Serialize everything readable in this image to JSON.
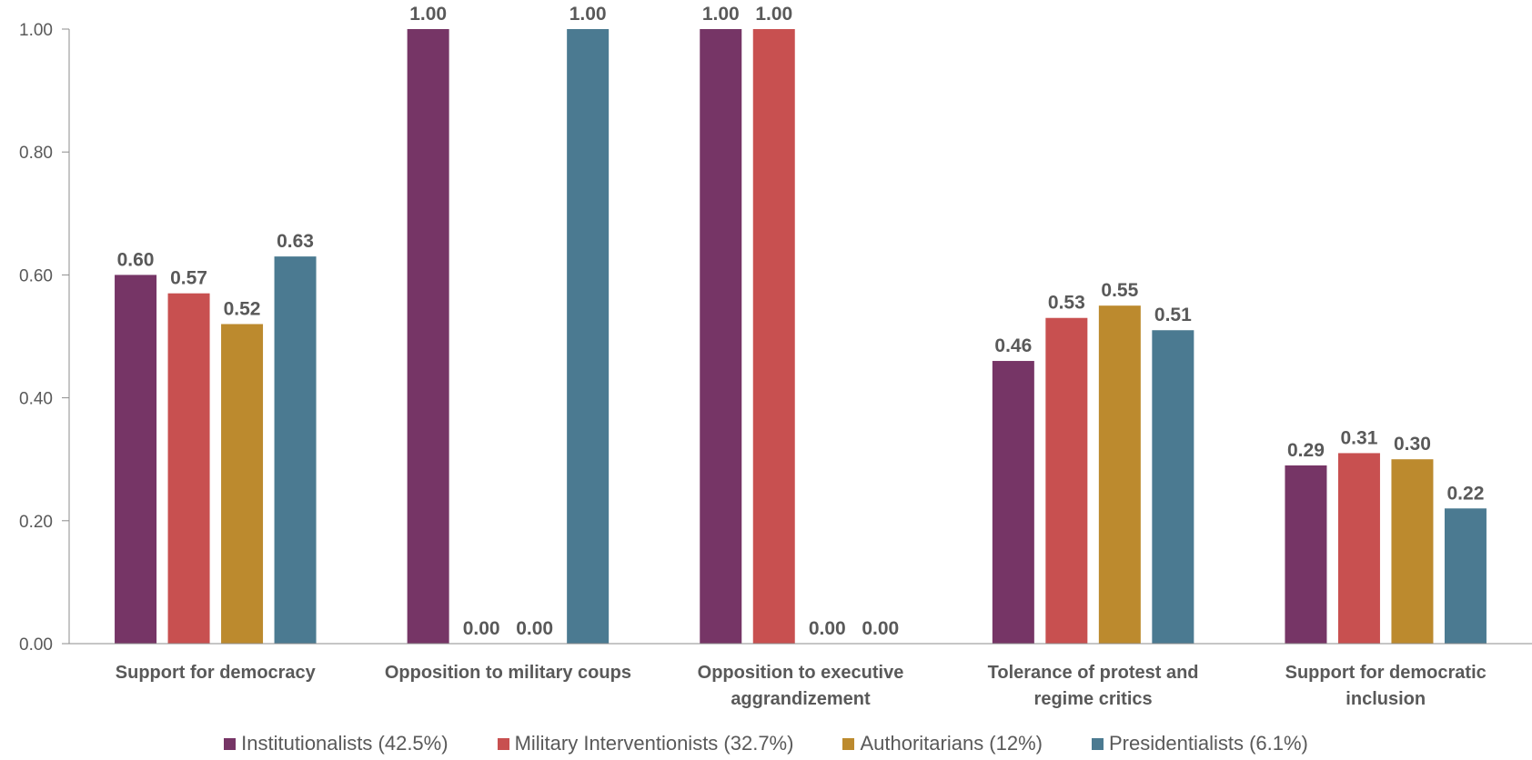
{
  "chart_data": {
    "type": "bar",
    "categories": [
      [
        "Support for democracy"
      ],
      [
        "Opposition to military coups"
      ],
      [
        "Opposition to executive",
        "aggrandizement"
      ],
      [
        "Tolerance of protest and",
        "regime critics"
      ],
      [
        "Support for democratic",
        "inclusion"
      ]
    ],
    "series": [
      {
        "name": "Institutionalists (42.5%)",
        "color": "#763566",
        "values": [
          0.6,
          1.0,
          1.0,
          0.46,
          0.29
        ],
        "labels": [
          "0.60",
          "1.00",
          "1.00",
          "0.46",
          "0.29"
        ]
      },
      {
        "name": "Military Interventionists (32.7%)",
        "color": "#C85050",
        "values": [
          0.57,
          0.0,
          1.0,
          0.53,
          0.31
        ],
        "labels": [
          "0.57",
          "0.00",
          "1.00",
          "0.53",
          "0.31"
        ]
      },
      {
        "name": "Authoritarians (12%)",
        "color": "#BC8A2E",
        "values": [
          0.52,
          0.0,
          0.0,
          0.55,
          0.3
        ],
        "labels": [
          "0.52",
          "0.00",
          "0.00",
          "0.55",
          "0.30"
        ]
      },
      {
        "name": "Presidentialists (6.1%)",
        "color": "#4B7A91",
        "values": [
          0.63,
          1.0,
          0.0,
          0.51,
          0.22
        ],
        "labels": [
          "0.63",
          "1.00",
          "0.00",
          "0.51",
          "0.22"
        ]
      }
    ],
    "ylim": [
      0,
      1
    ],
    "yticks": [
      "0.00",
      "0.20",
      "0.40",
      "0.60",
      "0.80",
      "1.00"
    ],
    "legend_position": "bottom",
    "grid": false
  }
}
